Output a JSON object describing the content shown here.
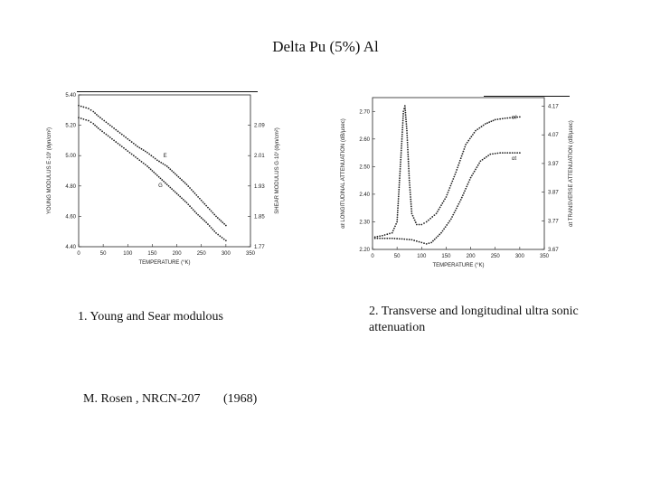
{
  "page": {
    "title": "Delta Pu  (5%) Al",
    "caption_1": "1. Young and Sear modulous",
    "caption_2": "2. Transverse and longitudinal ultra sonic attenuation",
    "citation_author": "M.  Rosen ,  NRCN-207",
    "citation_year": "(1968)"
  },
  "chart_data": [
    {
      "type": "scatter",
      "xlabel": "TEMPERATURE   (°K)",
      "ylabel_left": "YOUNG  MODULUS   E·10ⁱ (dyn/cm²)",
      "ylabel_right": "SHEAR  MODULUS  G·10ⁱ (dyn/cm²)",
      "xlim": [
        0,
        350
      ],
      "ylim_left": [
        4.4,
        5.4
      ],
      "ylim_right": [
        1.77,
        2.17
      ],
      "xticks": [
        "0",
        "50",
        "100",
        "150",
        "200",
        "250",
        "300",
        "350"
      ],
      "yticks_left": [
        "4.40",
        "4.60",
        "4.80",
        "5.00",
        "5.20",
        "5.40"
      ],
      "yticks_right": [
        "1.77",
        "1.85",
        "1.93",
        "2.01",
        "2.09"
      ],
      "series": [
        {
          "name": "E",
          "axis": "left",
          "x": [
            0,
            10,
            20,
            30,
            40,
            60,
            80,
            100,
            120,
            140,
            160,
            180,
            200,
            220,
            240,
            260,
            280,
            300
          ],
          "y": [
            5.33,
            5.32,
            5.31,
            5.29,
            5.26,
            5.21,
            5.16,
            5.11,
            5.06,
            5.02,
            4.97,
            4.93,
            4.87,
            4.81,
            4.74,
            4.67,
            4.6,
            4.54
          ]
        },
        {
          "name": "G",
          "axis": "left",
          "x": [
            0,
            10,
            20,
            30,
            40,
            60,
            80,
            100,
            120,
            140,
            160,
            180,
            200,
            220,
            240,
            260,
            280,
            300
          ],
          "y": [
            5.25,
            5.24,
            5.23,
            5.21,
            5.18,
            5.13,
            5.08,
            5.03,
            4.98,
            4.93,
            4.87,
            4.81,
            4.75,
            4.69,
            4.62,
            4.56,
            4.49,
            4.44
          ]
        }
      ]
    },
    {
      "type": "scatter",
      "xlabel": "TEMPERATURE   (°K)",
      "ylabel_left": "αℓ  LONGITUDINAL  ATTENUATION  (dB/µsec)",
      "ylabel_right": "αt  TRANSVERSE  ATTENUATION  (dB/µsec)",
      "xlim": [
        0,
        350
      ],
      "ylim_left": [
        2.2,
        2.75
      ],
      "ylim_right": [
        3.67,
        4.2
      ],
      "xticks": [
        "0",
        "50",
        "100",
        "150",
        "200",
        "250",
        "300",
        "350"
      ],
      "yticks_left": [
        "2.20",
        "2.30",
        "2.40",
        "2.50",
        "2.60",
        "2.70"
      ],
      "yticks_right": [
        "3.67",
        "3.77",
        "3.87",
        "3.97",
        "4.07",
        "4.17"
      ],
      "series": [
        {
          "name": "αℓ",
          "axis": "left",
          "x": [
            5,
            20,
            40,
            50,
            55,
            60,
            63,
            66,
            70,
            75,
            80,
            90,
            100,
            110,
            130,
            150,
            170,
            190,
            210,
            230,
            250,
            270,
            300
          ],
          "y": [
            2.245,
            2.25,
            2.26,
            2.3,
            2.45,
            2.6,
            2.7,
            2.72,
            2.63,
            2.45,
            2.33,
            2.29,
            2.29,
            2.3,
            2.33,
            2.39,
            2.48,
            2.58,
            2.63,
            2.655,
            2.67,
            2.675,
            2.68
          ]
        },
        {
          "name": "αt",
          "axis": "left",
          "x": [
            5,
            20,
            40,
            60,
            80,
            100,
            110,
            120,
            140,
            160,
            180,
            200,
            220,
            240,
            260,
            280,
            300
          ],
          "y": [
            2.24,
            2.24,
            2.24,
            2.238,
            2.235,
            2.225,
            2.22,
            2.225,
            2.26,
            2.31,
            2.38,
            2.46,
            2.52,
            2.545,
            2.55,
            2.55,
            2.55
          ]
        }
      ]
    }
  ]
}
